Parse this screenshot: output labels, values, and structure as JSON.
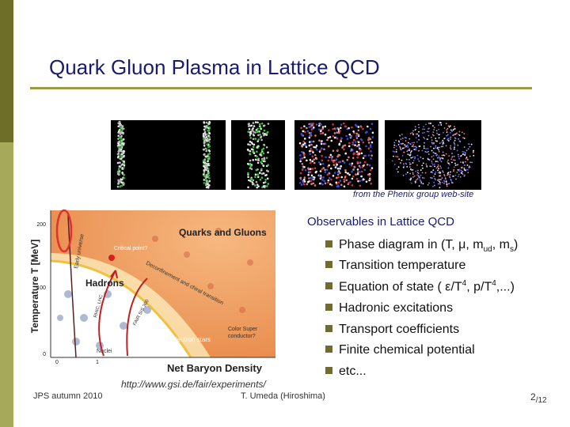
{
  "slide": {
    "title": "Quark Gluon Plasma in Lattice QCD",
    "image_credit": "from the Phenix group web-site",
    "diagram_credit": "http://www.gsi.de/fair/experiments/"
  },
  "phase_diagram": {
    "y_axis_label": "Temperature T [MeV]",
    "x_axis_label": "Net Baryon Density",
    "y_ticks": [
      "200",
      "100",
      "0"
    ],
    "x_ticks": [
      "0",
      "1"
    ],
    "regions": {
      "qgp": "Quarks and Gluons",
      "hadrons": "Hadrons",
      "critical_point": "Critical point?",
      "deconfinement": "Deconfinement and chiral transition",
      "early_universe": "Early universe",
      "rhic": "RHIC, LHC",
      "fair": "FAIR SIS 300",
      "neutron_stars": "Neutron stars",
      "color_super_1": "Color Super",
      "color_super_2": "conductor?",
      "nuclei": "Nuclei"
    }
  },
  "observables": {
    "heading": "Observables in Lattice QCD",
    "items": [
      {
        "text": "Phase diagram in (T, μ, m",
        "sub1": "ud",
        "mid": ", m",
        "sub2": "s",
        "end": ")"
      },
      {
        "text": "Transition temperature"
      },
      {
        "text": "Equation of state ( ε/T",
        "sup1": "4",
        "mid": ", p/T",
        "sup2": "4",
        "end": ",...)"
      },
      {
        "text": "Hadronic excitations"
      },
      {
        "text": "Transport coefficients"
      },
      {
        "text": "Finite chemical potential"
      },
      {
        "text": "etc..."
      }
    ]
  },
  "footer": {
    "left": "JPS autumn 2010",
    "center": "T. Umeda (Hiroshima)",
    "page": "2",
    "total": "/12"
  },
  "colors": {
    "title": "#1a1a6e",
    "bar_dark": "#6e6e28",
    "bar_light": "#a6a85a",
    "rule": "#9a9a40",
    "hadron_region": "#ffffff",
    "qgp_region": "#f0a060",
    "ellipse": "#e03030"
  }
}
